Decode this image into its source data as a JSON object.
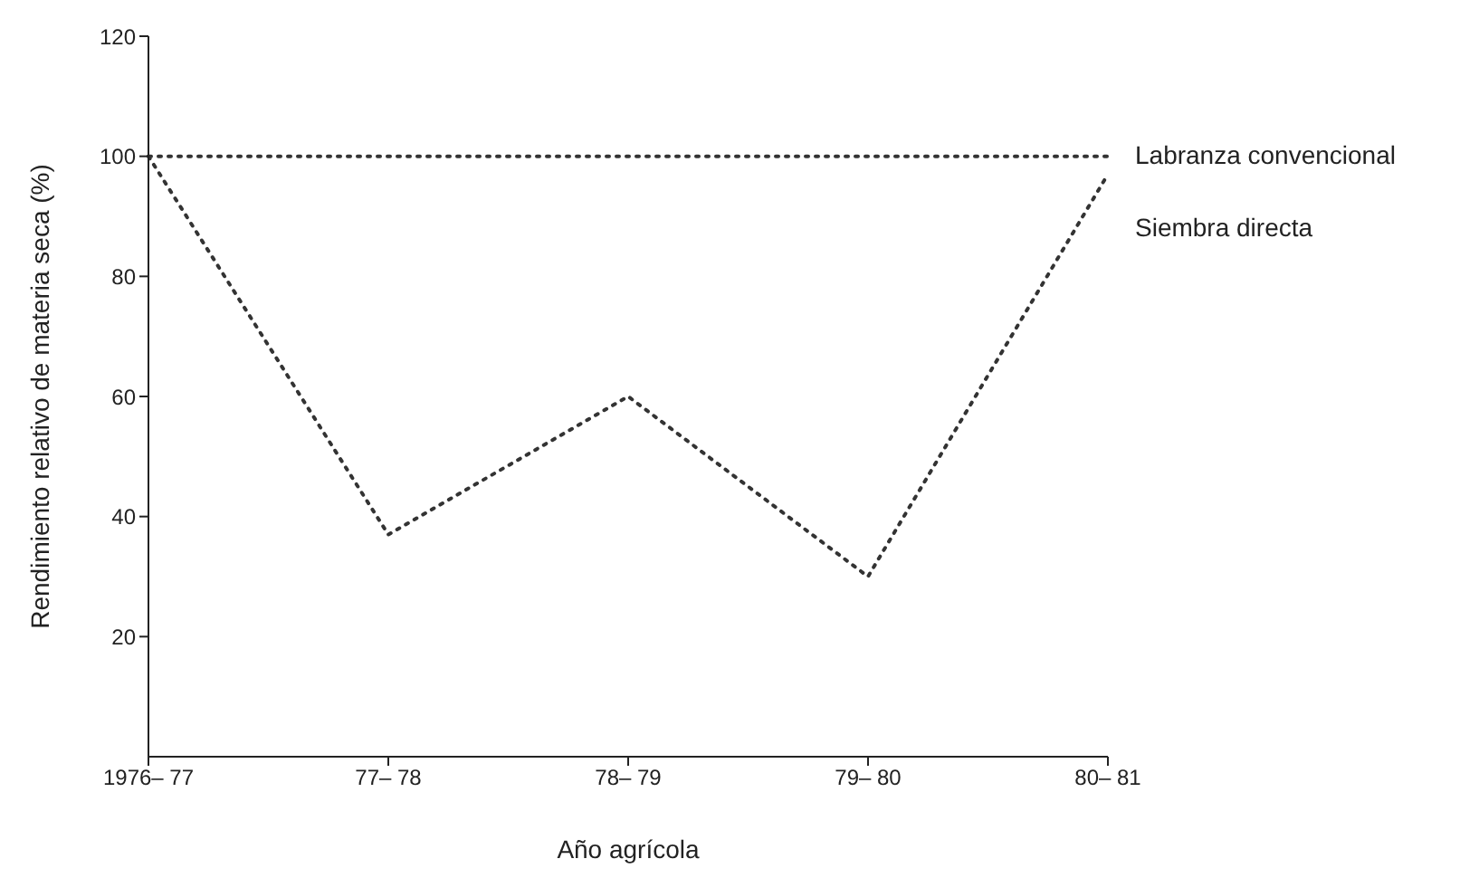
{
  "chart_data": {
    "type": "line",
    "xlabel": "Año agrícola",
    "ylabel": "Rendimiento relativo de materia seca (%)",
    "categories": [
      "1976– 77",
      "77– 78",
      "78– 79",
      "79– 80",
      "80– 81"
    ],
    "series": [
      {
        "name": "Labranza convencional",
        "color": "#333333",
        "values": [
          100,
          100,
          100,
          100,
          100
        ]
      },
      {
        "name": "Siembra directa",
        "color": "#333333",
        "values": [
          100,
          37,
          60,
          30,
          97
        ]
      }
    ],
    "ylim": [
      0,
      120
    ],
    "yticks": [
      20,
      40,
      60,
      80,
      100,
      120
    ],
    "grid": false,
    "legend": false,
    "marker": "none",
    "line_style": "dotted"
  }
}
